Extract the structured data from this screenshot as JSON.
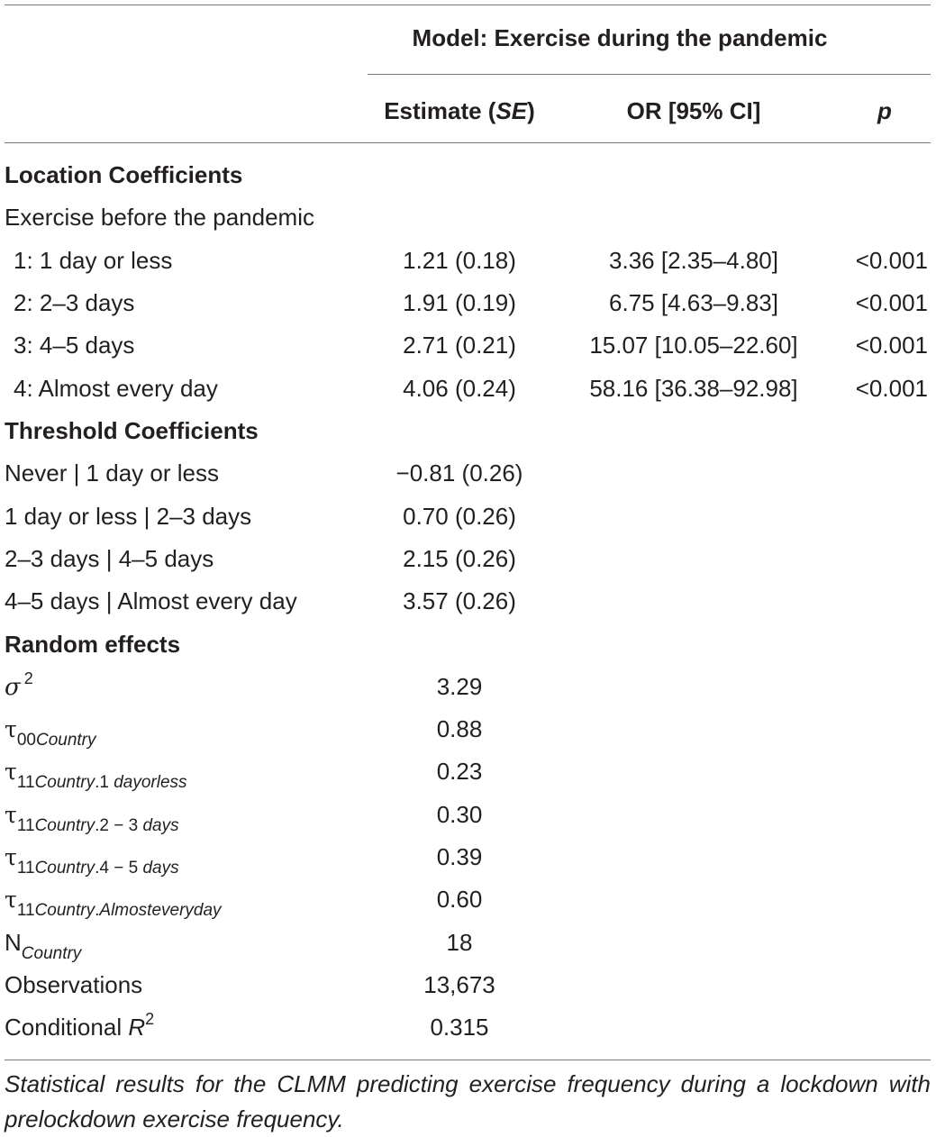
{
  "header": {
    "model_title": "Model: Exercise during the pandemic",
    "col_estimate_prefix": "Estimate (",
    "col_estimate_se": "SE",
    "col_estimate_suffix": ")",
    "col_or": "OR [95% CI]",
    "col_p": "p"
  },
  "location": {
    "title": "Location Coefficients",
    "subtitle": "Exercise before the pandemic",
    "rows": [
      {
        "label": "1: 1 day or less",
        "estimate": "1.21 (0.18)",
        "or": "3.36 [2.35–4.80]",
        "p": "<0.001"
      },
      {
        "label": "2: 2–3 days",
        "estimate": "1.91 (0.19)",
        "or": "6.75 [4.63–9.83]",
        "p": "<0.001"
      },
      {
        "label": "3: 4–5 days",
        "estimate": "2.71 (0.21)",
        "or": "15.07 [10.05–22.60]",
        "p": "<0.001"
      },
      {
        "label": "4: Almost every day",
        "estimate": "4.06 (0.24)",
        "or": "58.16 [36.38–92.98]",
        "p": "<0.001"
      }
    ]
  },
  "threshold": {
    "title": "Threshold Coefficients",
    "rows": [
      {
        "label": "Never | 1 day or less",
        "estimate": "−0.81 (0.26)"
      },
      {
        "label": "1 day or less | 2–3 days",
        "estimate": "0.70 (0.26)"
      },
      {
        "label": "2–3 days | 4–5 days",
        "estimate": "2.15 (0.26)"
      },
      {
        "label": "4–5 days | Almost every day",
        "estimate": "3.57 (0.26)"
      }
    ]
  },
  "random": {
    "title": "Random effects",
    "sigma_symbol": "σ",
    "sigma_sup": "2",
    "sigma_value": "3.29",
    "tau_symbol": "τ",
    "tau00_sub_num": "00",
    "tau00_sub_text": "Country",
    "tau00_value": "0.88",
    "tau11_sub_num": "11",
    "tau11_rows": [
      {
        "sub_country": "Country",
        "sub_sep": ".1 ",
        "sub_rest": "dayorless",
        "value": "0.23"
      },
      {
        "sub_country": "Country",
        "sub_sep": ".2 − 3 ",
        "sub_rest": "days",
        "value": "0.30"
      },
      {
        "sub_country": "Country",
        "sub_sep": ".4 − 5 ",
        "sub_rest": "days",
        "value": "0.39"
      },
      {
        "sub_country": "Country",
        "sub_sep": ".",
        "sub_rest": "Almosteveryday",
        "value": "0.60"
      }
    ],
    "n_symbol": "N",
    "n_sub": "Country",
    "n_value": "18",
    "obs_label": "Observations",
    "obs_value": "13,673",
    "r2_label": "Conditional ",
    "r2_symbol": "R",
    "r2_sup": "2",
    "r2_value": "0.315"
  },
  "note": "Statistical results for the CLMM predicting exercise frequency during a lockdown with prelockdown exercise frequency."
}
